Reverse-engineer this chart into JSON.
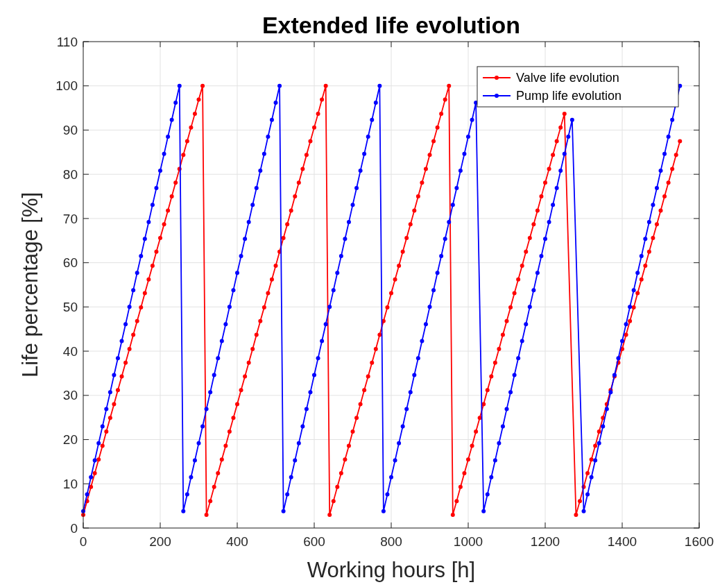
{
  "chart_data": {
    "type": "line",
    "title": "Extended life evolution",
    "xlabel": "Working hours [h]",
    "ylabel": "Life percentage [%]",
    "xlim": [
      0,
      1600
    ],
    "xticks": [
      0,
      200,
      400,
      600,
      800,
      1000,
      1200,
      1400,
      1600
    ],
    "ylim": [
      0,
      110
    ],
    "yticks": [
      0,
      10,
      20,
      30,
      40,
      50,
      60,
      70,
      80,
      90,
      100,
      110
    ],
    "grid": true,
    "legend": "top right",
    "marker": "circle",
    "line_style": "solid",
    "series": [
      {
        "name": "Valve life evolution",
        "color": "#ff0000",
        "x": [
          0,
          10,
          20,
          30,
          40,
          50,
          60,
          70,
          80,
          90,
          100,
          110,
          120,
          130,
          140,
          150,
          160,
          170,
          180,
          190,
          200,
          210,
          220,
          230,
          240,
          250,
          260,
          270,
          280,
          290,
          300,
          310,
          320,
          330,
          340,
          350,
          360,
          370,
          380,
          390,
          400,
          410,
          420,
          430,
          440,
          450,
          460,
          470,
          480,
          490,
          500,
          510,
          520,
          530,
          540,
          550,
          560,
          570,
          580,
          590,
          600,
          610,
          620,
          630,
          640,
          650,
          660,
          670,
          680,
          690,
          700,
          710,
          720,
          730,
          740,
          750,
          760,
          770,
          780,
          790,
          800,
          810,
          820,
          830,
          840,
          850,
          860,
          870,
          880,
          890,
          900,
          910,
          920,
          930,
          940,
          950,
          960,
          970,
          980,
          990,
          1000,
          1010,
          1020,
          1030,
          1040,
          1050,
          1060,
          1070,
          1080,
          1090,
          1100,
          1110,
          1120,
          1130,
          1140,
          1150,
          1160,
          1170,
          1180,
          1190,
          1200,
          1210,
          1220,
          1230,
          1240,
          1250,
          1260,
          1270,
          1280,
          1290,
          1300,
          1310,
          1320,
          1330,
          1340,
          1350,
          1360,
          1370,
          1380,
          1390,
          1400,
          1410,
          1420,
          1430,
          1440,
          1450,
          1460,
          1470,
          1480,
          1490,
          1500,
          1510,
          1520,
          1530,
          1540,
          1550
        ],
        "values": [
          3.0,
          6.1,
          9.3,
          12.4,
          15.5,
          18.6,
          21.8,
          24.9,
          28.0,
          31.2,
          34.3,
          37.4,
          40.5,
          43.7,
          46.8,
          49.9,
          53.1,
          56.2,
          59.3,
          62.5,
          65.6,
          68.7,
          71.8,
          75.0,
          78.1,
          81.2,
          84.4,
          87.5,
          90.6,
          93.7,
          96.9,
          100,
          3.0,
          6.1,
          9.3,
          12.4,
          15.5,
          18.6,
          21.8,
          24.9,
          28.0,
          31.2,
          34.3,
          37.4,
          40.5,
          43.7,
          46.8,
          49.9,
          53.1,
          56.2,
          59.3,
          62.5,
          65.6,
          68.7,
          71.8,
          75.0,
          78.1,
          81.2,
          84.4,
          87.5,
          90.6,
          93.7,
          96.9,
          100,
          3.0,
          6.1,
          9.3,
          12.4,
          15.5,
          18.6,
          21.8,
          24.9,
          28.0,
          31.2,
          34.3,
          37.4,
          40.5,
          43.7,
          46.8,
          49.9,
          53.1,
          56.2,
          59.3,
          62.5,
          65.6,
          68.7,
          71.8,
          75.0,
          78.1,
          81.2,
          84.4,
          87.5,
          90.6,
          93.7,
          96.9,
          100,
          3.0,
          6.1,
          9.3,
          12.4,
          15.5,
          18.6,
          21.8,
          24.9,
          28.0,
          31.2,
          34.3,
          37.4,
          40.5,
          43.7,
          46.8,
          49.9,
          53.1,
          56.2,
          59.3,
          62.5,
          65.6,
          68.7,
          71.8,
          75.0,
          78.1,
          81.2,
          84.4,
          87.5,
          90.6,
          93.7,
          null,
          null,
          3.0,
          6.1,
          9.3,
          12.4,
          15.5,
          18.6,
          21.8,
          24.9,
          28.0,
          31.2,
          34.3,
          37.4,
          40.5,
          43.7,
          46.8,
          49.9,
          53.1,
          56.2,
          59.3,
          62.5,
          65.6,
          68.7,
          71.8,
          75.0,
          78.1,
          81.2,
          84.4,
          87.5
        ]
      },
      {
        "name": "Pump life evolution",
        "color": "#0000ff",
        "x": [
          0,
          10,
          20,
          30,
          40,
          50,
          60,
          70,
          80,
          90,
          100,
          110,
          120,
          130,
          140,
          150,
          160,
          170,
          180,
          190,
          200,
          210,
          220,
          230,
          240,
          250,
          260,
          270,
          280,
          290,
          300,
          310,
          320,
          330,
          340,
          350,
          360,
          370,
          380,
          390,
          400,
          410,
          420,
          430,
          440,
          450,
          460,
          470,
          480,
          490,
          500,
          510,
          520,
          530,
          540,
          550,
          560,
          570,
          580,
          590,
          600,
          610,
          620,
          630,
          640,
          650,
          660,
          670,
          680,
          690,
          700,
          710,
          720,
          730,
          740,
          750,
          760,
          770,
          780,
          790,
          800,
          810,
          820,
          830,
          840,
          850,
          860,
          870,
          880,
          890,
          900,
          910,
          920,
          930,
          940,
          950,
          960,
          970,
          980,
          990,
          1000,
          1010,
          1020,
          1030,
          1040,
          1050,
          1060,
          1070,
          1080,
          1090,
          1100,
          1110,
          1120,
          1130,
          1140,
          1150,
          1160,
          1170,
          1180,
          1190,
          1200,
          1210,
          1220,
          1230,
          1240,
          1250,
          1260,
          1270,
          1280,
          1290,
          1300,
          1310,
          1320,
          1330,
          1340,
          1350,
          1360,
          1370,
          1380,
          1390,
          1400,
          1410,
          1420,
          1430,
          1440,
          1450,
          1460,
          1470,
          1480,
          1490,
          1500,
          1510,
          1520,
          1530,
          1540,
          1550
        ],
        "values": [
          3.8,
          7.6,
          11.5,
          15.3,
          19.2,
          23.0,
          26.9,
          30.7,
          34.6,
          38.4,
          42.3,
          46.1,
          50.0,
          53.8,
          57.7,
          61.5,
          65.4,
          69.2,
          73.1,
          76.9,
          80.8,
          84.6,
          88.5,
          92.3,
          96.2,
          100,
          3.8,
          7.6,
          11.5,
          15.3,
          19.2,
          23.0,
          26.9,
          30.7,
          34.6,
          38.4,
          42.3,
          46.1,
          50.0,
          53.8,
          57.7,
          61.5,
          65.4,
          69.2,
          73.1,
          76.9,
          80.8,
          84.6,
          88.5,
          92.3,
          96.2,
          100,
          3.8,
          7.6,
          11.5,
          15.3,
          19.2,
          23.0,
          26.9,
          30.7,
          34.6,
          38.4,
          42.3,
          46.1,
          50.0,
          53.8,
          57.7,
          61.5,
          65.4,
          69.2,
          73.1,
          76.9,
          80.8,
          84.6,
          88.5,
          92.3,
          96.2,
          100,
          3.8,
          7.6,
          11.5,
          15.3,
          19.2,
          23.0,
          26.9,
          30.7,
          34.6,
          38.4,
          42.3,
          46.1,
          50.0,
          53.8,
          57.7,
          61.5,
          65.4,
          69.2,
          73.1,
          76.9,
          80.8,
          84.6,
          88.5,
          92.3,
          96.2,
          null,
          3.8,
          7.6,
          11.5,
          15.3,
          19.2,
          23.0,
          26.9,
          30.7,
          34.6,
          38.4,
          42.3,
          46.1,
          50.0,
          53.8,
          57.7,
          61.5,
          65.4,
          69.2,
          73.1,
          76.9,
          80.8,
          84.6,
          88.5,
          92.3,
          null,
          null,
          3.8,
          7.6,
          11.5,
          15.3,
          19.2,
          23.0,
          26.9,
          30.7,
          34.6,
          38.4,
          42.3,
          46.1,
          50.0,
          53.8,
          57.7,
          61.5,
          65.4,
          69.2,
          73.1,
          76.9,
          80.8,
          84.6,
          88.5,
          92.3,
          null,
          100
        ]
      }
    ]
  }
}
